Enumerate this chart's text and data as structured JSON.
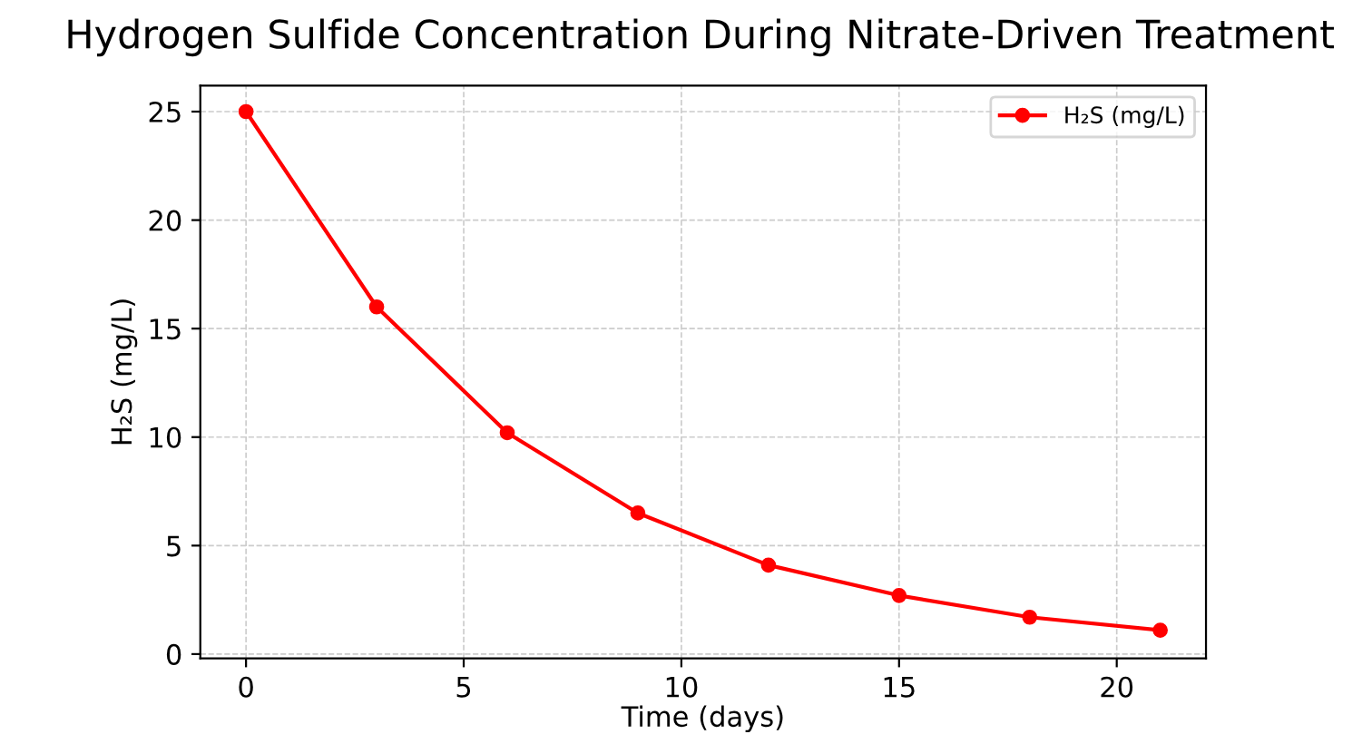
{
  "chart_data": {
    "type": "line",
    "title": "Hydrogen Sulfide Concentration During Nitrate-Driven Treatment",
    "xlabel": "Time (days)",
    "ylabel": "H₂S (mg/L)",
    "x": [
      0,
      3,
      6,
      9,
      12,
      15,
      18,
      21
    ],
    "series": [
      {
        "name": "H₂S (mg/L)",
        "color": "#ff0000",
        "values": [
          25,
          16,
          10.2,
          6.5,
          4.1,
          2.7,
          1.7,
          1.1
        ]
      }
    ],
    "xlim": [
      -1.05,
      22.05
    ],
    "ylim": [
      -0.2,
      26.2
    ],
    "xticks": [
      0,
      5,
      10,
      15,
      20
    ],
    "yticks": [
      0,
      5,
      10,
      15,
      20,
      25
    ],
    "grid": true,
    "legend": "top right",
    "marker": "circle",
    "line_style": "solid"
  }
}
